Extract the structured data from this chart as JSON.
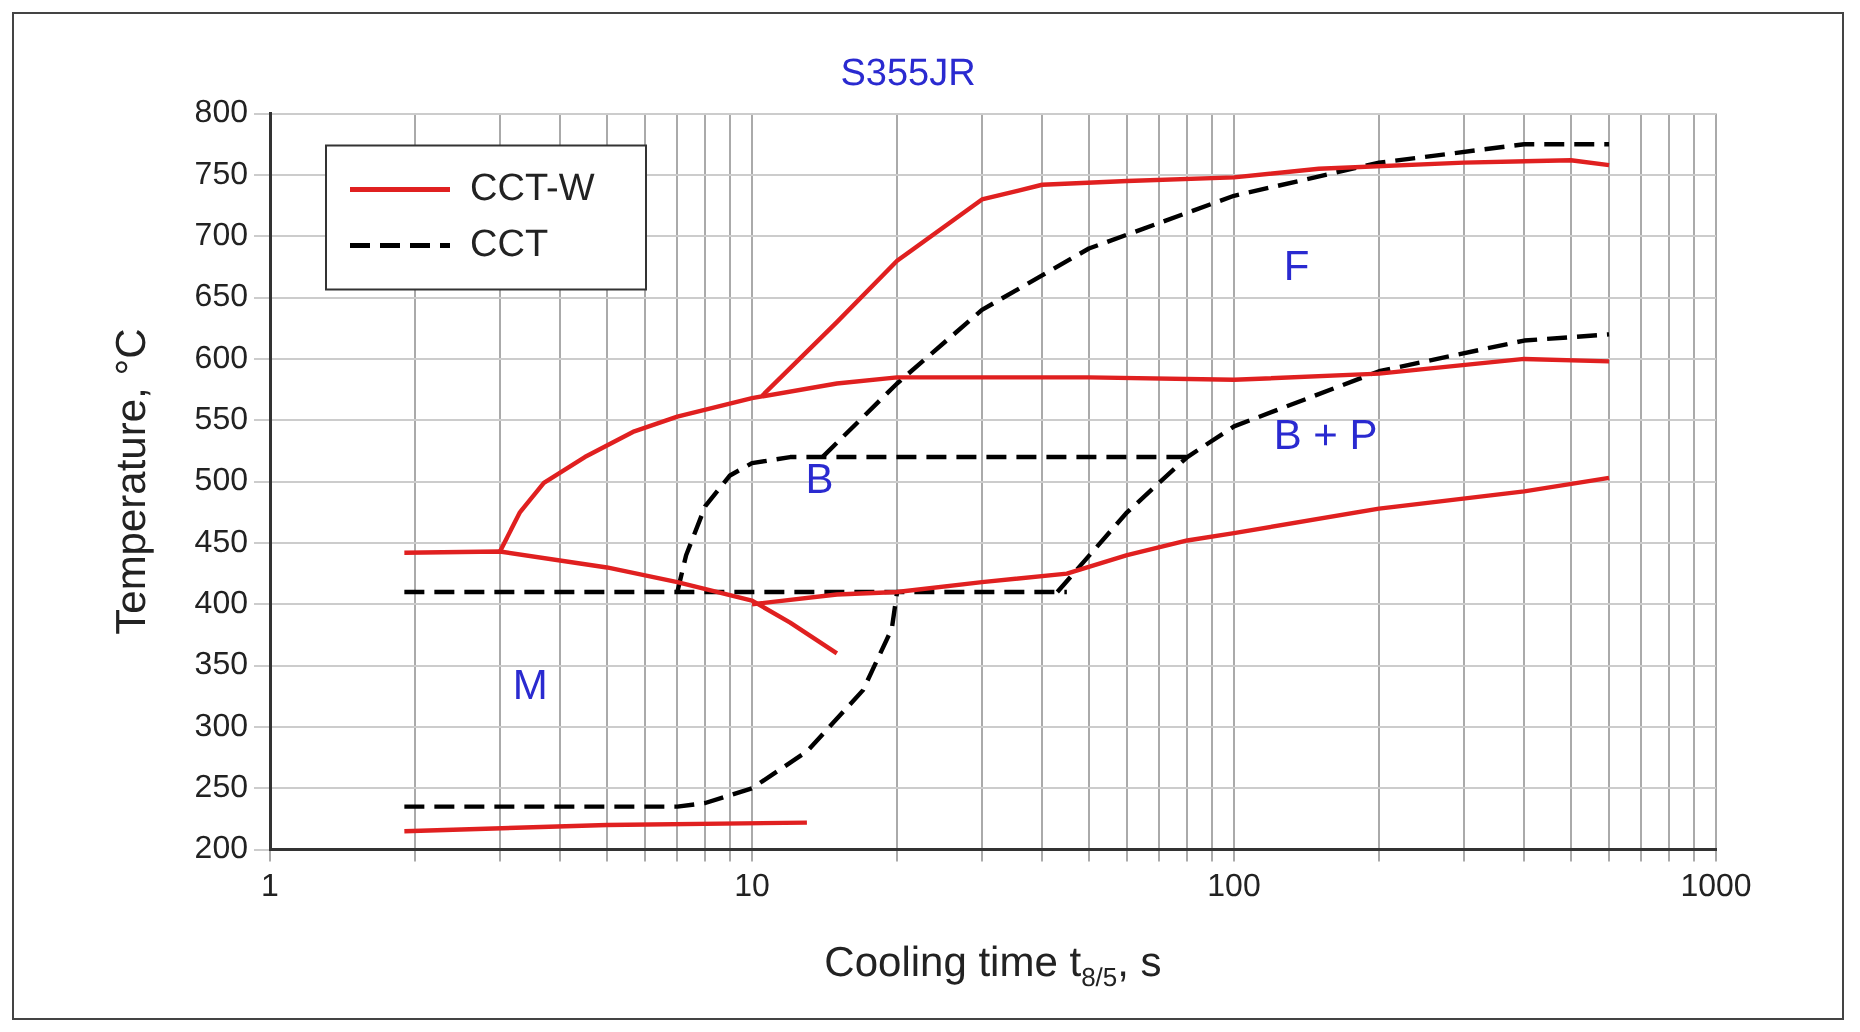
{
  "chart_data": {
    "type": "line",
    "title": "S355JR",
    "xlabel": "Cooling time t$_{8/5}$, s",
    "ylabel": "Temperature, °C",
    "log": "x",
    "xlim": [
      1,
      1000
    ],
    "ylim": [
      200,
      800
    ],
    "xticks": [
      1,
      {
        "value": 2,
        "label": null
      },
      {
        "value": 3,
        "label": null
      },
      {
        "value": 4,
        "label": null
      },
      {
        "value": 5,
        "label": null
      },
      {
        "value": 6,
        "label": null
      },
      {
        "value": 7,
        "label": null
      },
      {
        "value": 8,
        "label": null
      },
      {
        "value": 9,
        "label": null
      },
      10,
      {
        "value": 20,
        "label": null
      },
      {
        "value": 30,
        "label": null
      },
      {
        "value": 40,
        "label": null
      },
      {
        "value": 50,
        "label": null
      },
      {
        "value": 60,
        "label": null
      },
      {
        "value": 70,
        "label": null
      },
      {
        "value": 80,
        "label": null
      },
      {
        "value": 90,
        "label": null
      },
      100,
      {
        "value": 200,
        "label": null
      },
      {
        "value": 300,
        "label": null
      },
      {
        "value": 400,
        "label": null
      },
      {
        "value": 500,
        "label": null
      },
      {
        "value": 600,
        "label": null
      },
      {
        "value": 700,
        "label": null
      },
      {
        "value": 800,
        "label": null
      },
      {
        "value": 900,
        "label": null
      },
      1000
    ],
    "yticks": [
      200,
      250,
      300,
      350,
      400,
      450,
      500,
      550,
      600,
      650,
      700,
      750,
      800
    ],
    "grid": true,
    "legend": "top left",
    "marker": "none",
    "series": [
      {
        "name": "CCT-W",
        "color": "#e02020",
        "line_style": "solid",
        "x": [
          1.9,
          3,
          5,
          7,
          10,
          12,
          15
        ],
        "values": [
          442,
          443,
          430,
          418,
          403,
          385,
          360
        ]
      },
      {
        "color": "#e02020",
        "line_style": "solid",
        "x": [
          10,
          15,
          20,
          30,
          45,
          60,
          80,
          100,
          200,
          400,
          600
        ],
        "values": [
          400,
          408,
          410,
          418,
          425,
          440,
          452,
          458,
          478,
          492,
          503
        ]
      },
      {
        "color": "#e02020",
        "line_style": "solid",
        "x": [
          3,
          3.3,
          3.7,
          4.5,
          5.7,
          7,
          10,
          15,
          20,
          50,
          100,
          200,
          400,
          600
        ],
        "values": [
          443,
          475,
          499,
          520,
          541,
          553,
          568,
          580,
          585,
          585,
          583,
          588,
          600,
          598
        ]
      },
      {
        "color": "#e02020",
        "line_style": "solid",
        "x": [
          10.5,
          15,
          20,
          30,
          40,
          60,
          100,
          150,
          300,
          500,
          600
        ],
        "values": [
          570,
          630,
          680,
          730,
          742,
          745,
          748,
          755,
          760,
          762,
          758
        ]
      },
      {
        "color": "#e02020",
        "line_style": "solid",
        "x": [
          1.9,
          5,
          13
        ],
        "values": [
          215,
          220,
          222
        ]
      },
      {
        "name": "CCT",
        "color": "#000000",
        "line_style": "dashed",
        "x": [
          1.9,
          45
        ],
        "values": [
          410,
          410
        ]
      },
      {
        "color": "#000000",
        "line_style": "dashed",
        "x": [
          7,
          7.3,
          8,
          9,
          10,
          12,
          80
        ],
        "values": [
          410,
          440,
          480,
          505,
          515,
          520,
          520
        ]
      },
      {
        "color": "#000000",
        "line_style": "dashed",
        "x": [
          1.9,
          7,
          8,
          10,
          13,
          17,
          19.5,
          20
        ],
        "values": [
          235,
          235,
          238,
          250,
          280,
          330,
          380,
          410
        ]
      },
      {
        "color": "#000000",
        "line_style": "dashed",
        "x": [
          14,
          20,
          30,
          50,
          100,
          200,
          400,
          600
        ],
        "values": [
          520,
          580,
          640,
          690,
          733,
          760,
          775,
          775
        ]
      },
      {
        "color": "#000000",
        "line_style": "dashed",
        "x": [
          43,
          60,
          80,
          100,
          200,
          400,
          600
        ],
        "values": [
          410,
          475,
          520,
          545,
          590,
          615,
          620
        ]
      }
    ],
    "annotations": [
      "F",
      "B",
      "B + P",
      "M"
    ]
  }
}
